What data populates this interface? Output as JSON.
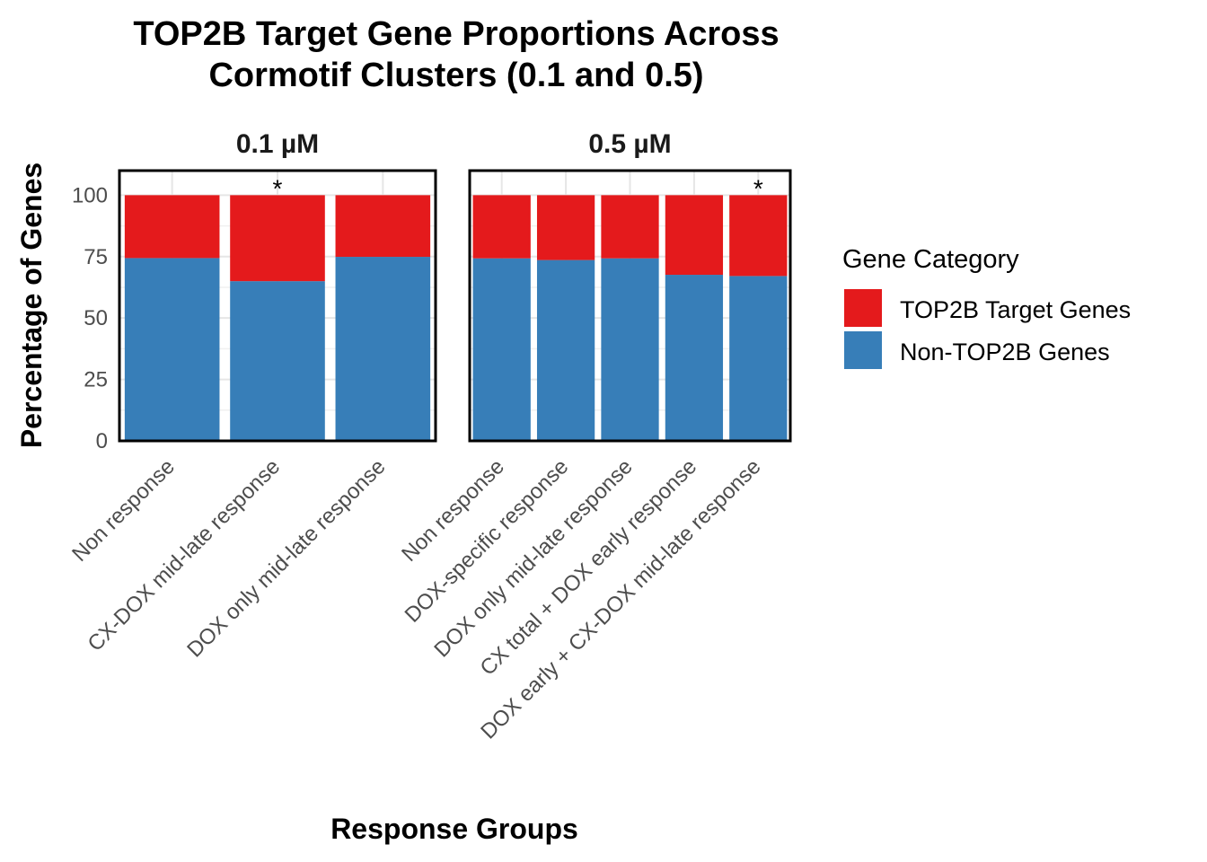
{
  "chart_data": {
    "type": "bar",
    "stacked": true,
    "title": "TOP2B Target Gene Proportions Across\nCormotif Clusters (0.1 and 0.5)",
    "xlabel": "Response Groups",
    "ylabel": "Percentage of Genes",
    "ylim": [
      0,
      110
    ],
    "yticks": [
      0,
      25,
      50,
      75,
      100
    ],
    "grid": true,
    "legend": {
      "title": "Gene Category",
      "position": "right"
    },
    "series": [
      {
        "name": "TOP2B Target Genes",
        "color": "#E41A1C"
      },
      {
        "name": "Non-TOP2B Genes",
        "color": "#377EB8"
      }
    ],
    "panels": [
      {
        "label": "0.1 µM",
        "categories": [
          "Non response",
          "CX-DOX mid-late response",
          "DOX only mid-late response"
        ],
        "top2b_target": [
          25.6,
          35.0,
          25.1
        ],
        "non_top2b": [
          74.4,
          65.0,
          74.9
        ],
        "significance": [
          "",
          "*",
          ""
        ]
      },
      {
        "label": "0.5 µM",
        "categories": [
          "Non response",
          "DOX-specific response",
          "DOX only mid-late response",
          "CX total + DOX early response",
          "DOX early + CX-DOX mid-late response"
        ],
        "top2b_target": [
          25.7,
          26.4,
          25.7,
          32.4,
          32.9
        ],
        "non_top2b": [
          74.3,
          73.6,
          74.3,
          67.6,
          67.1
        ],
        "significance": [
          "",
          "",
          "",
          "",
          "*"
        ]
      }
    ]
  }
}
